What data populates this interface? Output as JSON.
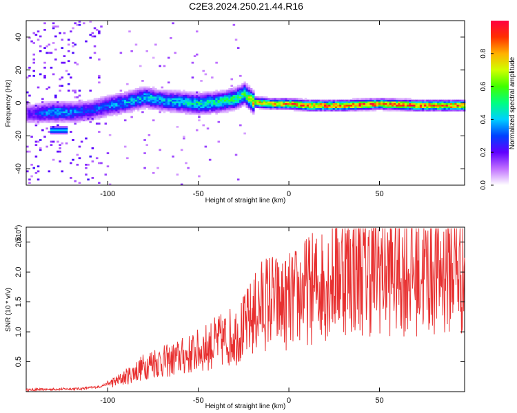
{
  "title": "C2E3.2024.250.21.44.R16",
  "chart_data": [
    {
      "type": "heatmap",
      "xlabel": "Height of straight line (km)",
      "ylabel": "Frequency (Hz)",
      "xlim": [
        -145,
        97
      ],
      "ylim": [
        -50,
        50
      ],
      "xticks": [
        -100,
        -50,
        0,
        50
      ],
      "yticks": [
        -40,
        -20,
        0,
        20,
        40
      ],
      "colorbar": {
        "label": "Normalized spectral amplitude",
        "range": [
          0,
          1
        ],
        "ticks": [
          "0.0",
          "0.2",
          "0.4",
          "0.6",
          "0.8"
        ],
        "tick_values": [
          0.0,
          0.2,
          0.4,
          0.6,
          0.8
        ],
        "colors": [
          "#ffffff",
          "#c070ff",
          "#6000ff",
          "#0040ff",
          "#00d0ff",
          "#00ff80",
          "#40ff00",
          "#d0ff00",
          "#ffb000",
          "#ff3000",
          "#ff0040"
        ]
      },
      "ridge": {
        "x": [
          -145,
          -130,
          -120,
          -110,
          -100,
          -90,
          -80,
          -70,
          -60,
          -50,
          -40,
          -30,
          -25,
          -20,
          -10,
          0,
          10,
          30,
          50,
          70,
          90,
          97
        ],
        "frequency": [
          -7,
          -6,
          -6,
          -5,
          -2,
          0,
          3,
          1,
          0,
          -1,
          0,
          2,
          5,
          0,
          -1,
          -1,
          -2,
          -2,
          -1,
          -2,
          -2,
          -2
        ],
        "amplitude": [
          0.2,
          0.4,
          0.35,
          0.3,
          0.35,
          0.4,
          0.45,
          0.4,
          0.45,
          0.5,
          0.5,
          0.55,
          0.6,
          0.8,
          0.85,
          0.9,
          0.92,
          0.95,
          0.95,
          0.95,
          0.95,
          0.95
        ]
      },
      "side_blob": {
        "x": [
          -133,
          -123
        ],
        "frequency": -17,
        "amplitude": 0.4
      }
    },
    {
      "type": "line",
      "xlabel": "Height of straight line (km)",
      "ylabel": "SNR (10 * v/v)",
      "y_multiplier": "(x10",
      "y_multiplier_exp": "4",
      "y_multiplier_close": ")",
      "xlim": [
        -145,
        97
      ],
      "ylim": [
        0,
        2.75
      ],
      "xticks": [
        -100,
        -50,
        0,
        50
      ],
      "yticks": [
        "0.5",
        "1.0",
        "1.5",
        "2.0",
        "2.5"
      ],
      "ytick_values": [
        0.5,
        1.0,
        1.5,
        2.0,
        2.5
      ],
      "color": "#e83030",
      "series": [
        {
          "x": [
            -145,
            -130,
            -115,
            -105,
            -100,
            -95,
            -90,
            -85,
            -80,
            -75,
            -70,
            -65,
            -60,
            -55,
            -50,
            -45,
            -40,
            -35,
            -30,
            -25,
            -20,
            -15,
            -10,
            -5,
            0,
            5,
            10,
            15,
            20,
            25,
            30,
            35,
            40,
            45,
            50,
            55,
            60,
            65,
            70,
            75,
            80,
            85,
            90,
            95,
            97
          ],
          "values": [
            0.03,
            0.04,
            0.05,
            0.08,
            0.13,
            0.18,
            0.25,
            0.33,
            0.42,
            0.5,
            0.5,
            0.52,
            0.58,
            0.62,
            0.68,
            0.75,
            0.82,
            0.88,
            0.95,
            1.05,
            1.25,
            1.45,
            1.55,
            1.45,
            1.5,
            1.6,
            1.7,
            1.75,
            1.85,
            1.95,
            2.05,
            2.0,
            2.05,
            2.0,
            2.1,
            2.0,
            2.05,
            2.0,
            2.05,
            1.95,
            2.05,
            2.0,
            2.1,
            2.0,
            2.05
          ]
        }
      ]
    }
  ]
}
